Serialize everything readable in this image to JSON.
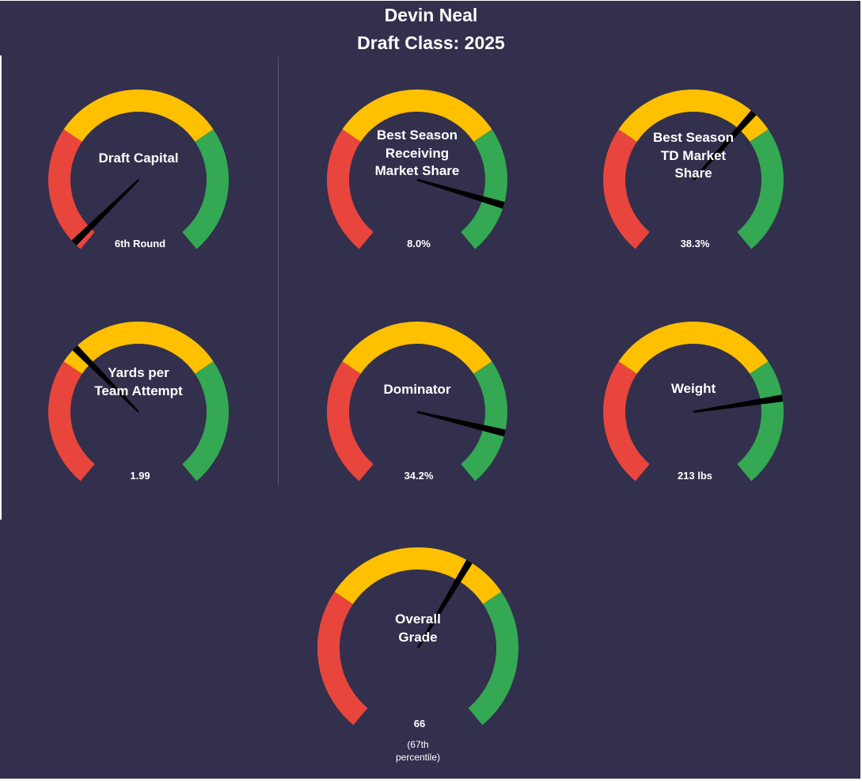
{
  "header": {
    "player_name": "Devin Neal",
    "draft_class": "Draft Class: 2025"
  },
  "colors": {
    "background": "#32304d",
    "low": "#e8453c",
    "mid": "#ffc000",
    "high": "#34a853",
    "needle": "#000000",
    "text": "#ffffff"
  },
  "chart_data": [
    {
      "type": "gauge",
      "title": "Draft Capital",
      "value_label": "6th Round",
      "needle_fraction": 0.02
    },
    {
      "type": "gauge",
      "title": "Best Season Receiving Market Share",
      "value_label": "8.0%",
      "needle_fraction": 0.88
    },
    {
      "type": "gauge",
      "title": "Best Season TD Market Share",
      "value_label": "38.3%",
      "needle_fraction": 0.65
    },
    {
      "type": "gauge",
      "title": "Yards per Team Attempt",
      "value_label": "1.99",
      "needle_fraction": 0.34
    },
    {
      "type": "gauge",
      "title": "Dominator",
      "value_label": "34.2%",
      "needle_fraction": 0.87
    },
    {
      "type": "gauge",
      "title": "Weight",
      "value_label": "213 lbs",
      "needle_fraction": 0.79
    },
    {
      "type": "gauge",
      "title": "Overall Grade",
      "value_label": "66",
      "sub_label": "(67th percentile)",
      "needle_fraction": 0.61
    }
  ]
}
